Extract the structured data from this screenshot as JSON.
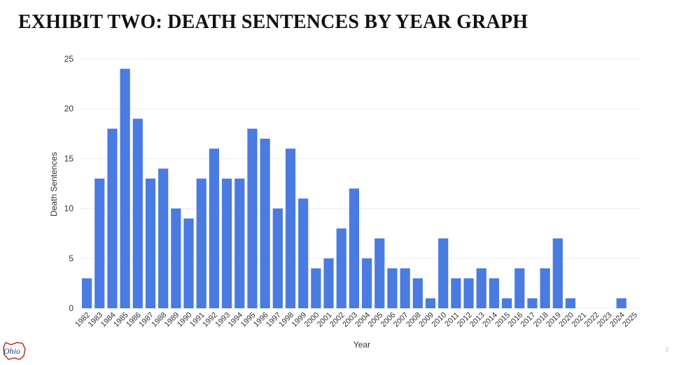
{
  "slide": {
    "title": "EXHIBIT TWO: DEATH SENTENCES BY YEAR GRAPH",
    "page_number": "3",
    "logo_text": "Ohio"
  },
  "colors": {
    "bar": "#4a7be0",
    "grid": "#e9eef4",
    "text": "#333333"
  },
  "chart_data": {
    "type": "bar",
    "title": "",
    "xlabel": "Year",
    "ylabel": "Death Sentences",
    "ylim": [
      0,
      25
    ],
    "yticks": [
      0,
      5,
      10,
      15,
      20,
      25
    ],
    "grid": true,
    "categories": [
      "1982",
      "1983",
      "1984",
      "1985",
      "1986",
      "1987",
      "1988",
      "1989",
      "1990",
      "1991",
      "1992",
      "1993",
      "1994",
      "1995",
      "1996",
      "1997",
      "1998",
      "1999",
      "2000",
      "2001",
      "2002",
      "2003",
      "2004",
      "2005",
      "2006",
      "2007",
      "2008",
      "2009",
      "2010",
      "2011",
      "2012",
      "2013",
      "2014",
      "2015",
      "2016",
      "2017",
      "2018",
      "2019",
      "2020",
      "2021",
      "2022",
      "2023",
      "2024",
      "2025"
    ],
    "values": [
      3,
      13,
      18,
      24,
      19,
      13,
      14,
      10,
      9,
      13,
      16,
      13,
      13,
      18,
      17,
      10,
      16,
      11,
      4,
      5,
      8,
      12,
      5,
      7,
      4,
      4,
      3,
      1,
      7,
      3,
      3,
      4,
      3,
      1,
      4,
      1,
      4,
      7,
      1,
      0,
      0,
      0,
      1,
      0
    ]
  }
}
